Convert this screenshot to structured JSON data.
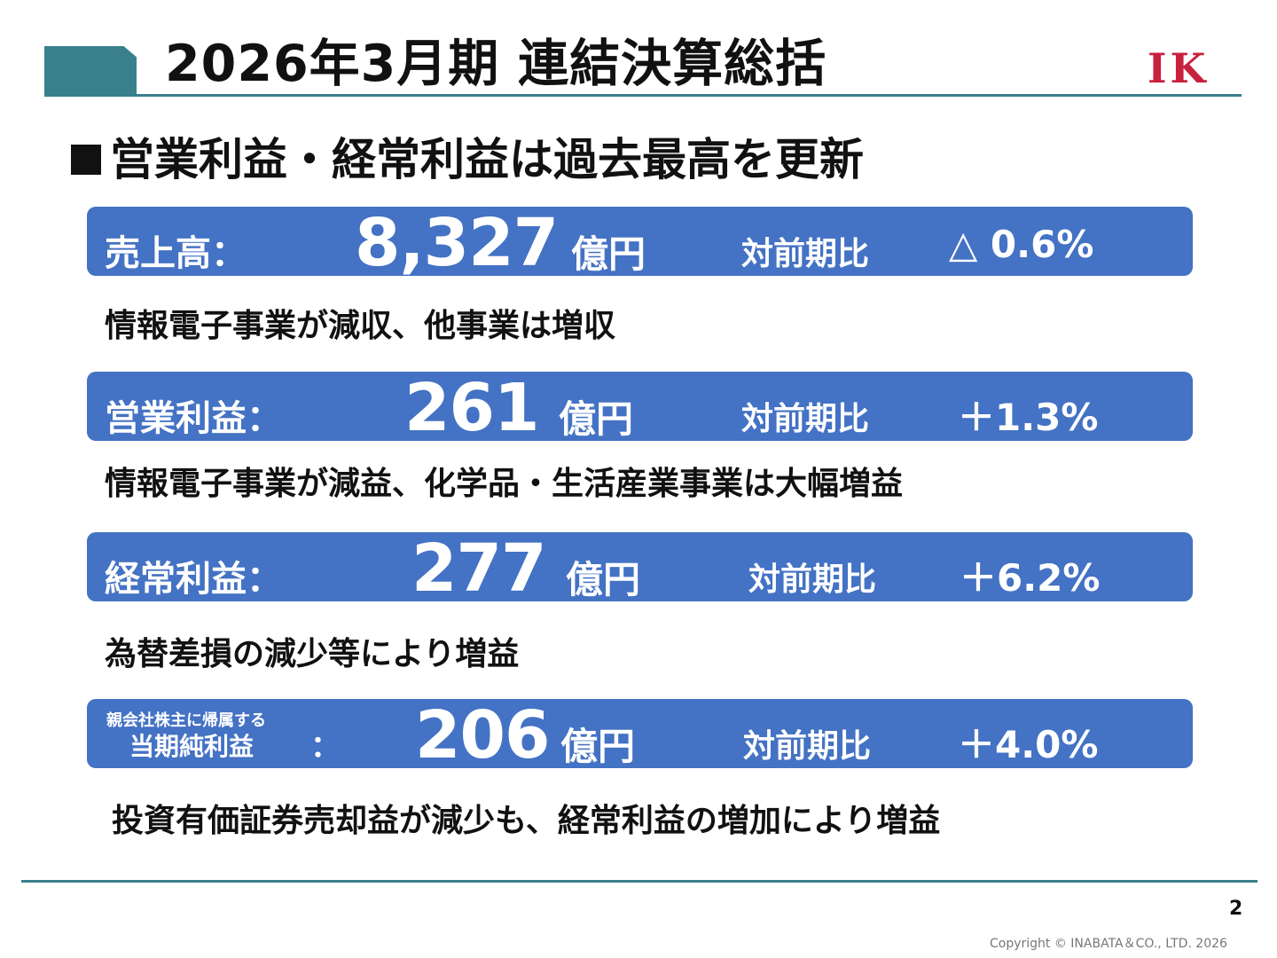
{
  "slide": {
    "title": "2026年3月期 連結決算総括",
    "logo_text": "IK",
    "headline": "営業利益・経常利益は過去最高を更新",
    "page_number": "2",
    "copyright": "Copyright © INABATA＆CO., LTD.  2026"
  },
  "metrics": [
    {
      "label": "売上高：",
      "value": "8,327",
      "unit": "億円",
      "comparison_label": "対前期比",
      "change": "△ 0.6%",
      "note": "情報電子事業が減収、他事業は増収"
    },
    {
      "label": "営業利益：",
      "value": "261",
      "unit": "億円",
      "comparison_label": "対前期比",
      "change": "＋1.3%",
      "note": "情報電子事業が減益、化学品・生活産業事業は大幅増益"
    },
    {
      "label": "経常利益：",
      "value": "277",
      "unit": "億円",
      "comparison_label": "対前期比",
      "change": "＋6.2%",
      "note": "為替差損の減少等により増益"
    },
    {
      "label_top": "親会社株主に帰属する",
      "label_bottom": "当期純利益",
      "label_colon": "：",
      "value": "206",
      "unit": "億円",
      "comparison_label": "対前期比",
      "change": "＋4.0%",
      "note": "投資有価証券売却益が減少も、経常利益の増加により増益"
    }
  ],
  "colors": {
    "band": "#4472c4",
    "accent": "#3a7f8c",
    "logo": "#c8213e"
  }
}
